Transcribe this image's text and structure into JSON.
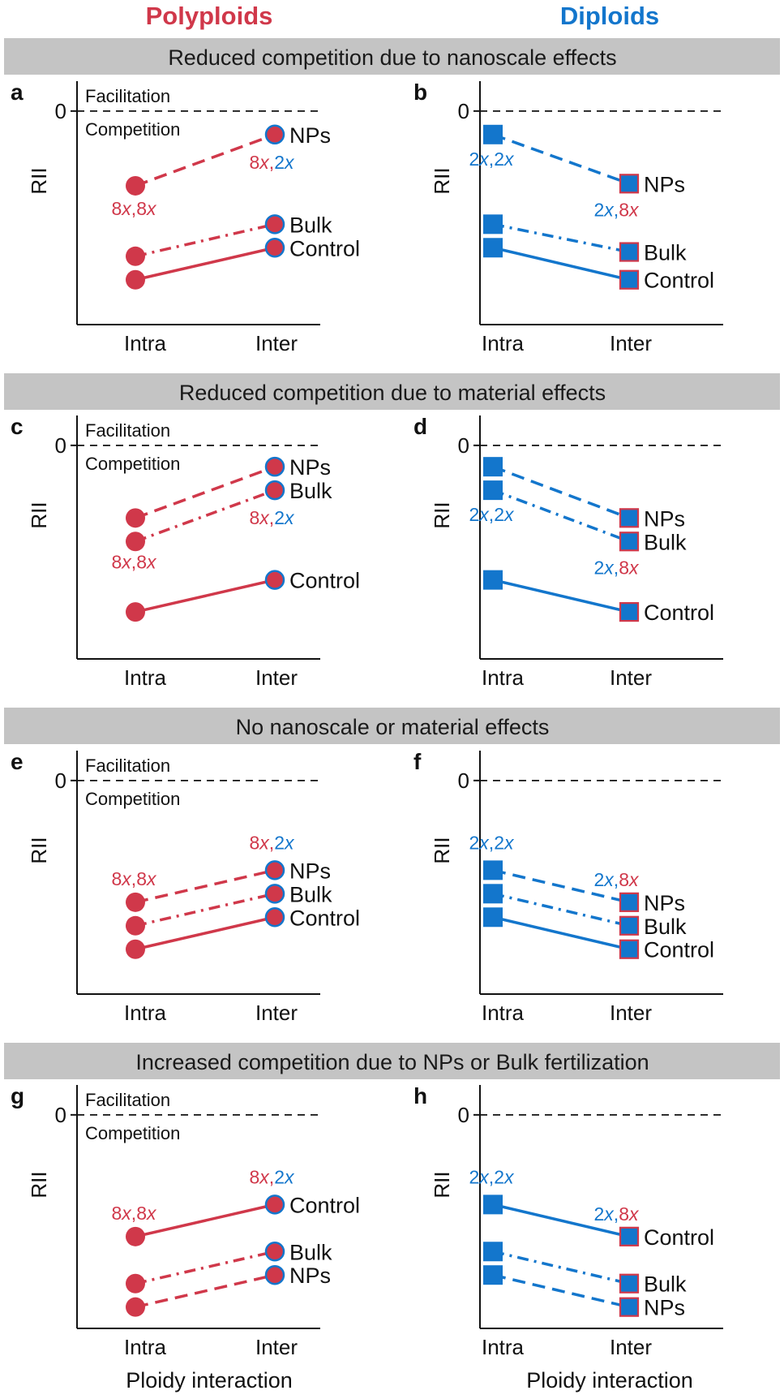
{
  "colors": {
    "polyploid": "#d0384a",
    "diploid": "#1376cc",
    "banner": "#c4c4c4"
  },
  "columns": [
    {
      "title": "Polyploids",
      "color": "#d0384a"
    },
    {
      "title": "Diploids",
      "color": "#1376cc"
    }
  ],
  "banners": [
    "Reduced competition due to nanoscale effects",
    "Reduced competition due to material effects",
    "No nanoscale or material effects",
    "Increased competition due to NPs or Bulk fertilization"
  ],
  "zone_labels": {
    "facilitation": "Facilitation",
    "competition": "Competition"
  },
  "x_axis_label": "Ploidy interaction",
  "chart_data": [
    {
      "panel": "a",
      "type": "line",
      "group": "Polyploids",
      "row": 0,
      "col": 0,
      "x": [
        "Intra",
        "Inter"
      ],
      "ylabel": "RII",
      "y_ticks": [
        "0"
      ],
      "ylim": [
        -1.0,
        0.14
      ],
      "show_zone_labels": true,
      "ploidy_labels": {
        "intra": [
          "8x",
          "8x"
        ],
        "inter": [
          "8x",
          "2x"
        ]
      },
      "series": [
        {
          "name": "NPs",
          "style": "dashed",
          "values": [
            -0.35,
            -0.11
          ]
        },
        {
          "name": "Bulk",
          "style": "dashdot",
          "values": [
            -0.68,
            -0.53
          ]
        },
        {
          "name": "Control",
          "style": "solid",
          "values": [
            -0.79,
            -0.64
          ]
        }
      ]
    },
    {
      "panel": "b",
      "type": "line",
      "group": "Diploids",
      "row": 0,
      "col": 1,
      "x": [
        "Intra",
        "Inter"
      ],
      "ylabel": "RII",
      "y_ticks": [
        "0"
      ],
      "ylim": [
        -1.0,
        0.14
      ],
      "show_zone_labels": false,
      "ploidy_labels": {
        "intra": [
          "2x",
          "2x"
        ],
        "inter": [
          "2x",
          "8x"
        ]
      },
      "series": [
        {
          "name": "NPs",
          "style": "dashed",
          "values": [
            -0.11,
            -0.34
          ]
        },
        {
          "name": "Bulk",
          "style": "dashdot",
          "values": [
            -0.53,
            -0.66
          ]
        },
        {
          "name": "Control",
          "style": "solid",
          "values": [
            -0.64,
            -0.79
          ]
        }
      ]
    },
    {
      "panel": "c",
      "type": "line",
      "group": "Polyploids",
      "row": 1,
      "col": 0,
      "x": [
        "Intra",
        "Inter"
      ],
      "ylabel": "RII",
      "y_ticks": [
        "0"
      ],
      "ylim": [
        -1.0,
        0.14
      ],
      "show_zone_labels": true,
      "ploidy_labels": {
        "intra": [
          "8x",
          "8x"
        ],
        "inter": [
          "8x",
          "2x"
        ]
      },
      "series": [
        {
          "name": "NPs",
          "style": "dashed",
          "values": [
            -0.34,
            -0.1
          ]
        },
        {
          "name": "Bulk",
          "style": "dashdot",
          "values": [
            -0.45,
            -0.21
          ]
        },
        {
          "name": "Control",
          "style": "solid",
          "values": [
            -0.78,
            -0.63
          ]
        }
      ]
    },
    {
      "panel": "d",
      "type": "line",
      "group": "Diploids",
      "row": 1,
      "col": 1,
      "x": [
        "Intra",
        "Inter"
      ],
      "ylabel": "RII",
      "y_ticks": [
        "0"
      ],
      "ylim": [
        -1.0,
        0.14
      ],
      "show_zone_labels": false,
      "ploidy_labels": {
        "intra": [
          "2x",
          "2x"
        ],
        "inter": [
          "2x",
          "8x"
        ]
      },
      "series": [
        {
          "name": "NPs",
          "style": "dashed",
          "values": [
            -0.1,
            -0.34
          ]
        },
        {
          "name": "Bulk",
          "style": "dashdot",
          "values": [
            -0.21,
            -0.45
          ]
        },
        {
          "name": "Control",
          "style": "solid",
          "values": [
            -0.63,
            -0.78
          ]
        }
      ]
    },
    {
      "panel": "e",
      "type": "line",
      "group": "Polyploids",
      "row": 2,
      "col": 0,
      "x": [
        "Intra",
        "Inter"
      ],
      "ylabel": "RII",
      "y_ticks": [
        "0"
      ],
      "ylim": [
        -1.0,
        0.14
      ],
      "show_zone_labels": true,
      "ploidy_labels": {
        "intra": [
          "8x",
          "8x"
        ],
        "inter": [
          "8x",
          "2x"
        ]
      },
      "series": [
        {
          "name": "NPs",
          "style": "dashed",
          "values": [
            -0.57,
            -0.42
          ]
        },
        {
          "name": "Bulk",
          "style": "dashdot",
          "values": [
            -0.68,
            -0.53
          ]
        },
        {
          "name": "Control",
          "style": "solid",
          "values": [
            -0.79,
            -0.64
          ]
        }
      ]
    },
    {
      "panel": "f",
      "type": "line",
      "group": "Diploids",
      "row": 2,
      "col": 1,
      "x": [
        "Intra",
        "Inter"
      ],
      "ylabel": "RII",
      "y_ticks": [
        "0"
      ],
      "ylim": [
        -1.0,
        0.14
      ],
      "show_zone_labels": false,
      "ploidy_labels": {
        "intra": [
          "2x",
          "2x"
        ],
        "inter": [
          "2x",
          "8x"
        ]
      },
      "series": [
        {
          "name": "NPs",
          "style": "dashed",
          "values": [
            -0.42,
            -0.57
          ]
        },
        {
          "name": "Bulk",
          "style": "dashdot",
          "values": [
            -0.53,
            -0.68
          ]
        },
        {
          "name": "Control",
          "style": "solid",
          "values": [
            -0.64,
            -0.79
          ]
        }
      ]
    },
    {
      "panel": "g",
      "type": "line",
      "group": "Polyploids",
      "row": 3,
      "col": 0,
      "x": [
        "Intra",
        "Inter"
      ],
      "ylabel": "RII",
      "y_ticks": [
        "0"
      ],
      "ylim": [
        -1.0,
        0.14
      ],
      "show_zone_labels": true,
      "ploidy_labels": {
        "intra": [
          "8x",
          "8x"
        ],
        "inter": [
          "8x",
          "2x"
        ]
      },
      "series": [
        {
          "name": "Control",
          "style": "solid",
          "values": [
            -0.57,
            -0.42
          ]
        },
        {
          "name": "Bulk",
          "style": "dashdot",
          "values": [
            -0.79,
            -0.64
          ]
        },
        {
          "name": "NPs",
          "style": "dashed",
          "values": [
            -0.9,
            -0.75
          ]
        }
      ]
    },
    {
      "panel": "h",
      "type": "line",
      "group": "Diploids",
      "row": 3,
      "col": 1,
      "x": [
        "Intra",
        "Inter"
      ],
      "ylabel": "RII",
      "y_ticks": [
        "0"
      ],
      "ylim": [
        -1.0,
        0.14
      ],
      "show_zone_labels": false,
      "ploidy_labels": {
        "intra": [
          "2x",
          "2x"
        ],
        "inter": [
          "2x",
          "8x"
        ]
      },
      "series": [
        {
          "name": "Control",
          "style": "solid",
          "values": [
            -0.42,
            -0.57
          ]
        },
        {
          "name": "Bulk",
          "style": "dashdot",
          "values": [
            -0.64,
            -0.79
          ]
        },
        {
          "name": "NPs",
          "style": "dashed",
          "values": [
            -0.75,
            -0.9
          ]
        }
      ]
    }
  ]
}
